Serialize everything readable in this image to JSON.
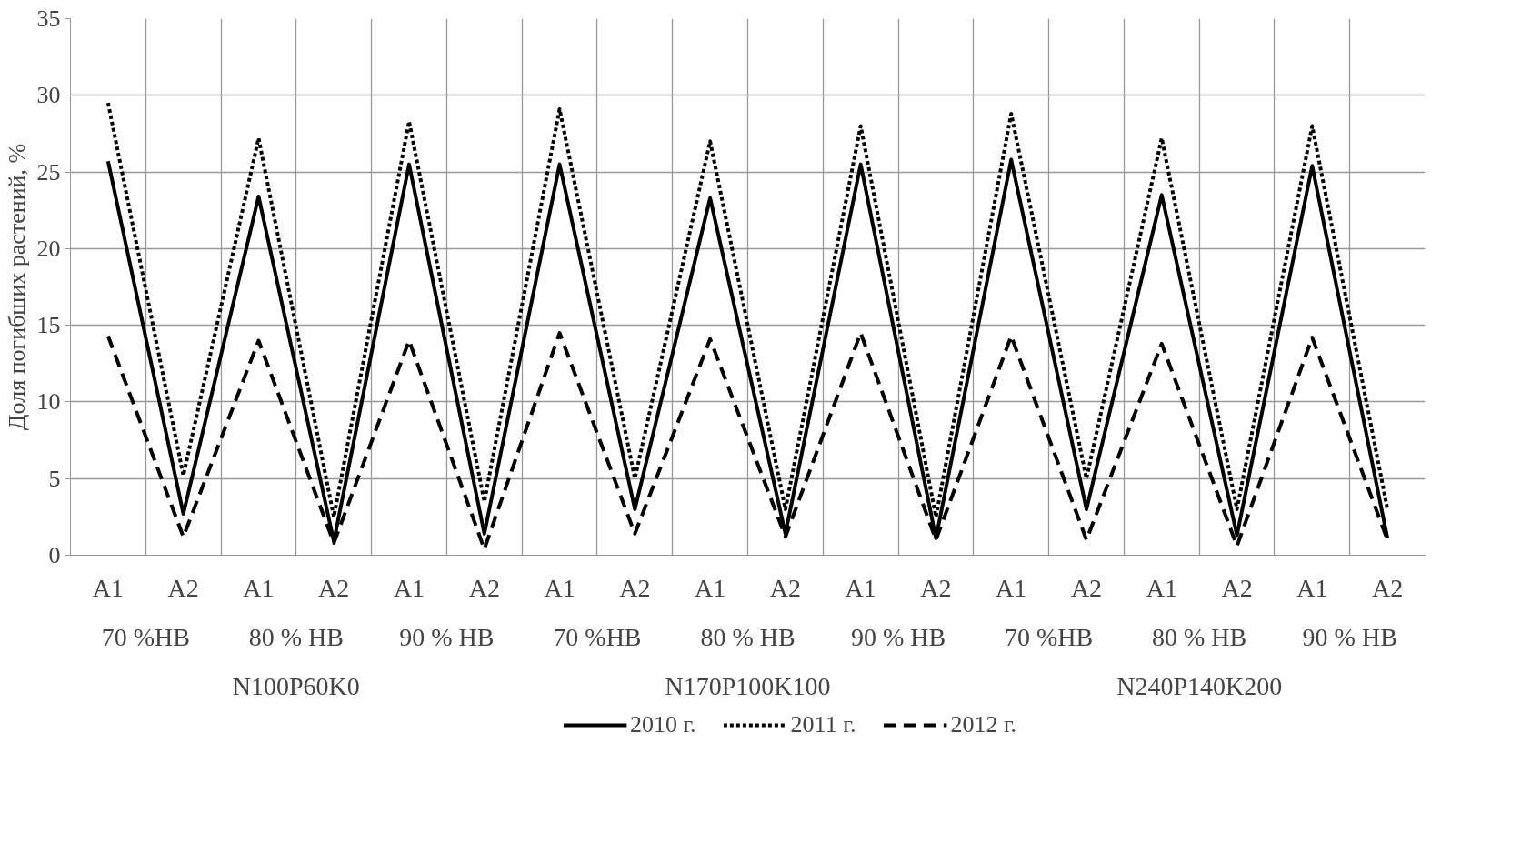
{
  "chart_data": {
    "type": "line",
    "ylabel": "Доля погибших растений, %",
    "categories": [
      "A1",
      "A2",
      "A1",
      "A2",
      "A1",
      "A2",
      "A1",
      "A2",
      "A1",
      "A2",
      "A1",
      "A2",
      "A1",
      "A2",
      "A1",
      "A2",
      "A1",
      "A2"
    ],
    "annotations": [
      "70 %HB",
      "80 % HB",
      "90 % HB",
      "70 %HB",
      "80 % HB",
      "90 % HB",
      "70 %HB",
      "80 % HB",
      "90 % HB",
      "N100P60K0",
      "N170P100K100",
      "N240P140K200"
    ],
    "series": [
      {
        "name": "2010 г.",
        "color": "#000000",
        "line_style": "solid",
        "values": [
          25.7,
          2.7,
          23.4,
          0.9,
          25.5,
          1.4,
          25.5,
          3.0,
          23.3,
          1.4,
          25.5,
          1.1,
          25.8,
          3.0,
          23.5,
          1.3,
          25.4,
          1.1
        ]
      },
      {
        "name": "2011 г.",
        "color": "#000000",
        "line_style": "dotted",
        "values": [
          29.5,
          5.2,
          27.2,
          2.5,
          28.3,
          3.5,
          29.1,
          5.0,
          27.0,
          3.0,
          28.0,
          2.5,
          28.8,
          5.0,
          27.2,
          3.0,
          28.0,
          3.0
        ]
      },
      {
        "name": "2012 г.",
        "color": "#000000",
        "line_style": "dashed",
        "values": [
          14.3,
          1.2,
          14.0,
          0.8,
          14.0,
          0.4,
          14.5,
          1.4,
          14.1,
          1.2,
          14.5,
          1.0,
          14.3,
          1.0,
          13.8,
          0.6,
          14.2,
          1.0
        ]
      }
    ],
    "ylim": [
      0,
      35
    ],
    "yticks": [
      0,
      5,
      10,
      15,
      20,
      25,
      30,
      35
    ],
    "grid": true,
    "legend": "bottom",
    "marker": "none"
  }
}
